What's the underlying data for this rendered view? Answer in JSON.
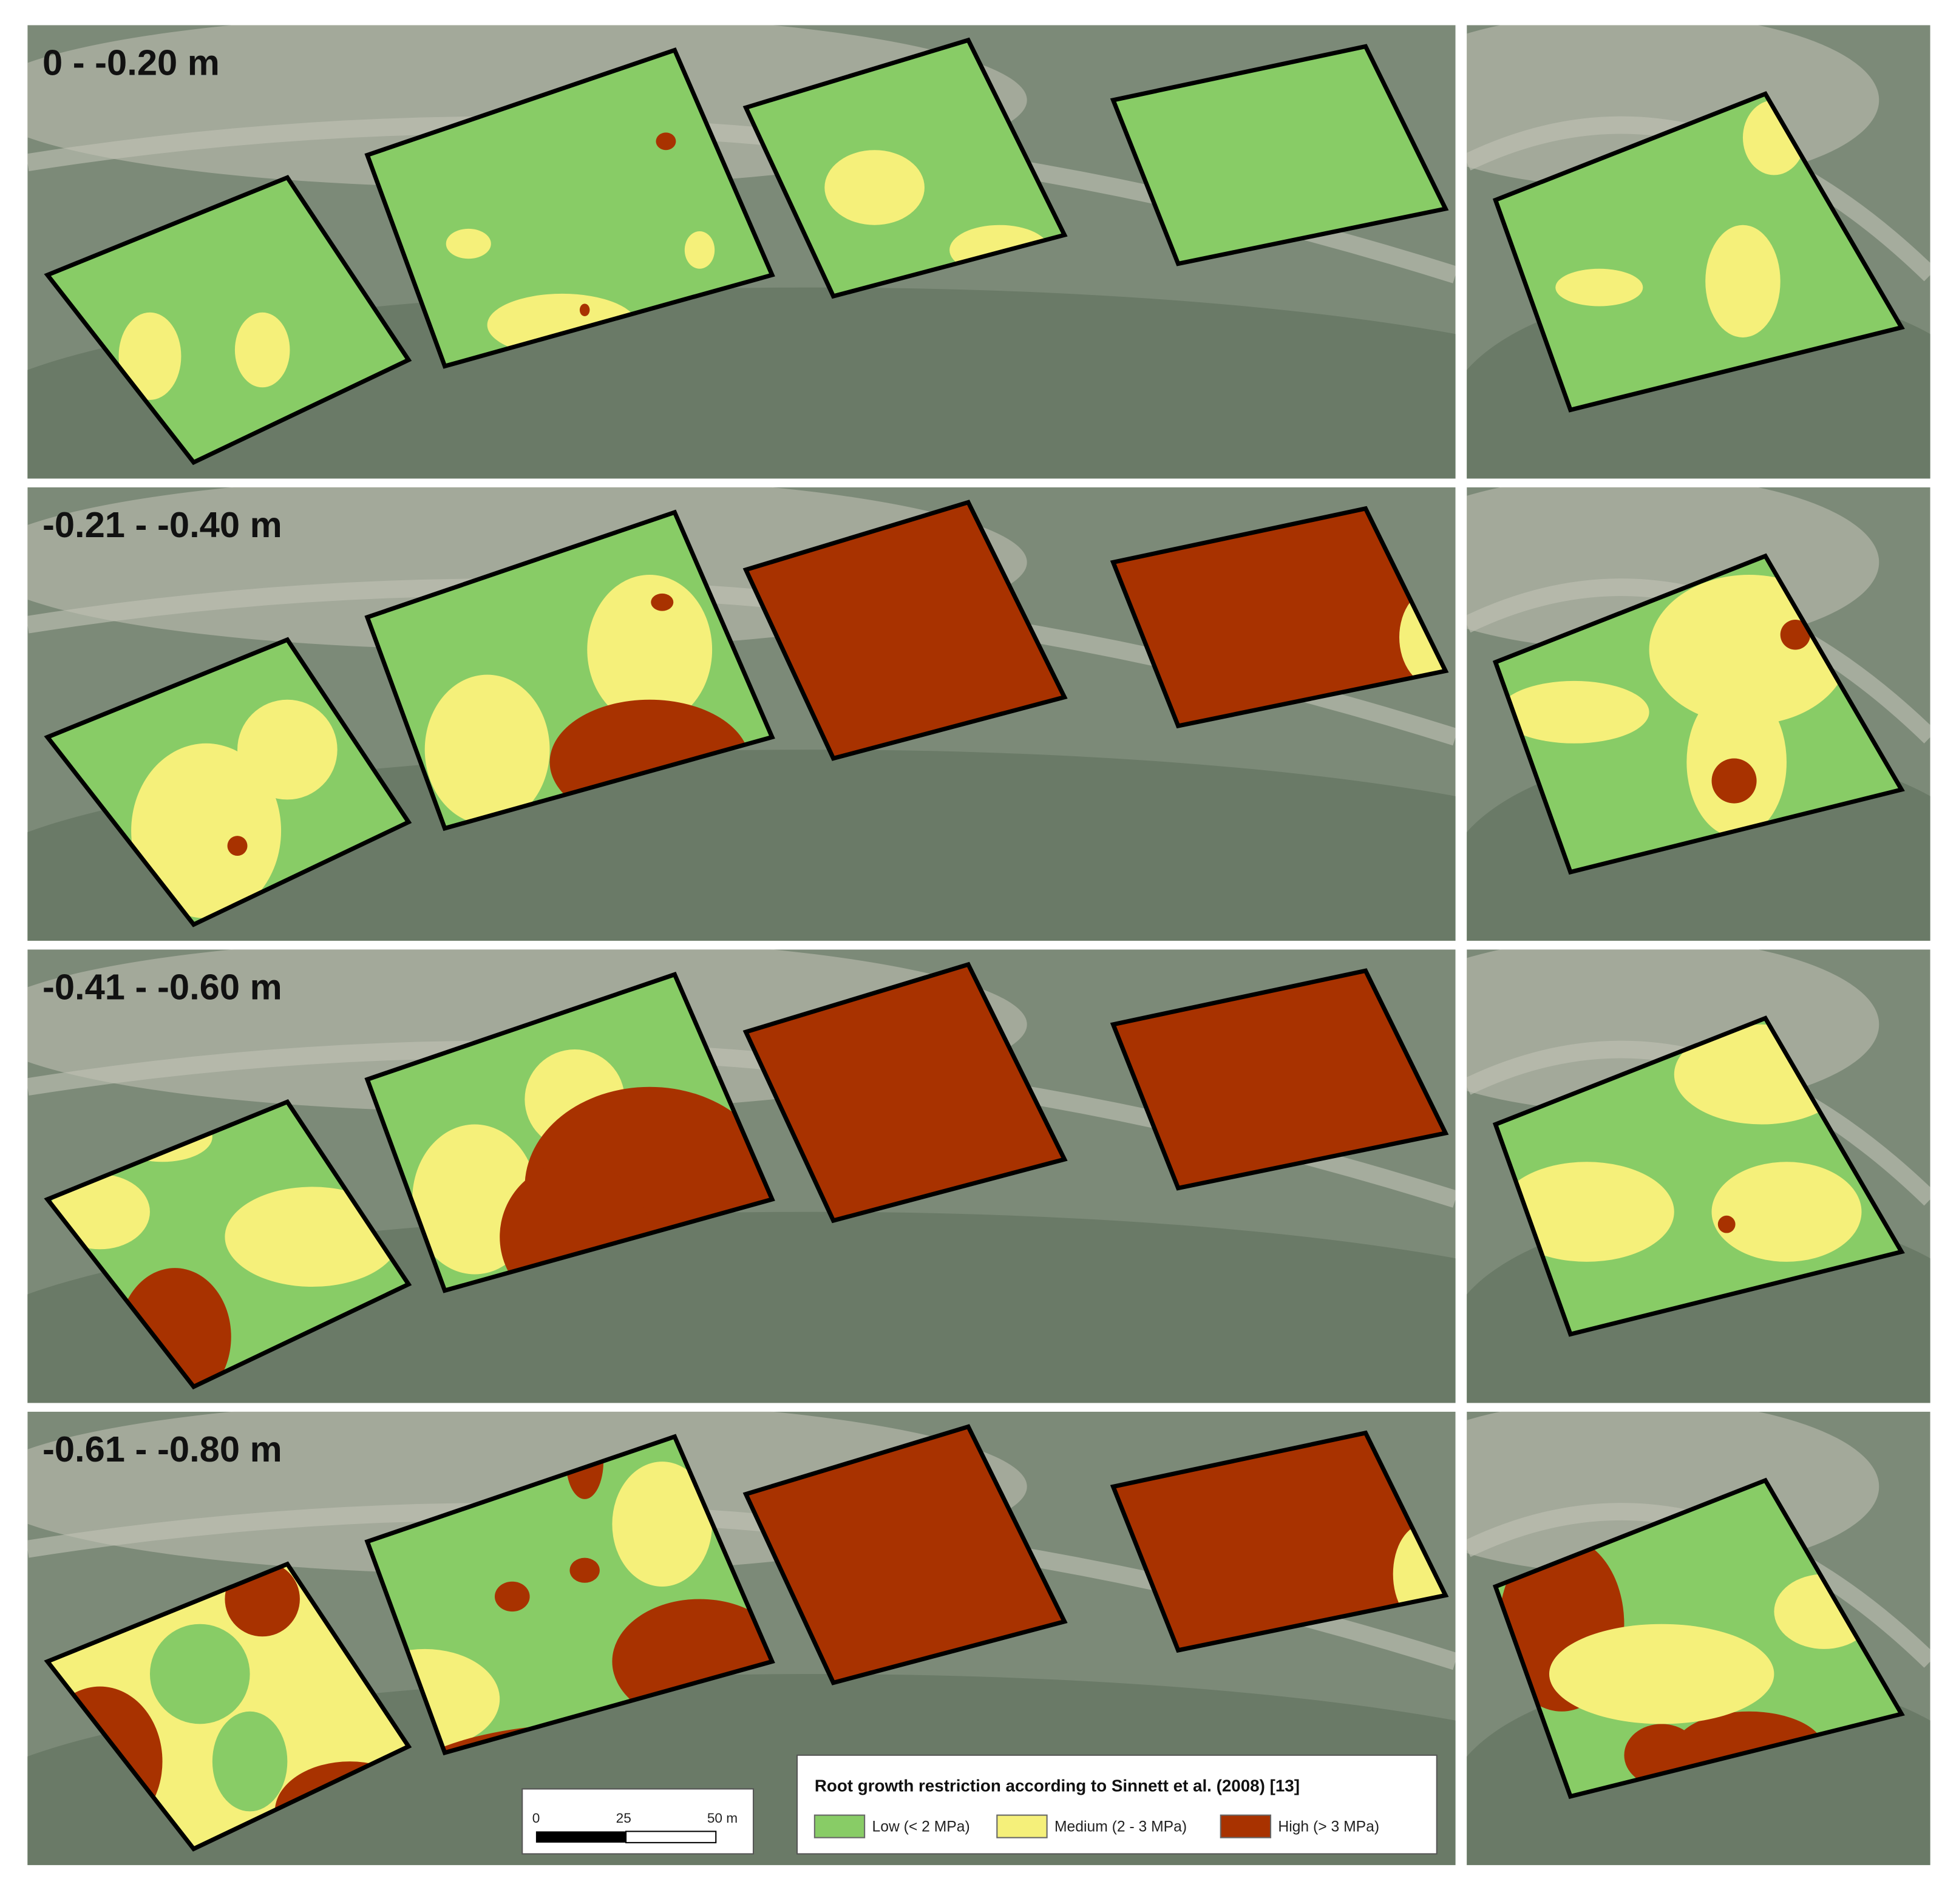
{
  "panels": [
    {
      "depth_label": "0 - -0.20 m"
    },
    {
      "depth_label": "-0.21 - -0.40 m"
    },
    {
      "depth_label": "-0.41 - -0.60 m"
    },
    {
      "depth_label": "-0.61 - -0.80 m"
    }
  ],
  "legend": {
    "title": "Root growth restriction according to Sinnett et al. (2008) [13]",
    "items": [
      {
        "label": "Low (< 2 MPa)",
        "color": "#88cc66"
      },
      {
        "label": "Medium (2 - 3 MPa)",
        "color": "#f5f07a"
      },
      {
        "label": "High (> 3 MPa)",
        "color": "#a83200"
      }
    ]
  },
  "scale_bar": {
    "labels": [
      "0",
      "25",
      "50 m"
    ]
  }
}
